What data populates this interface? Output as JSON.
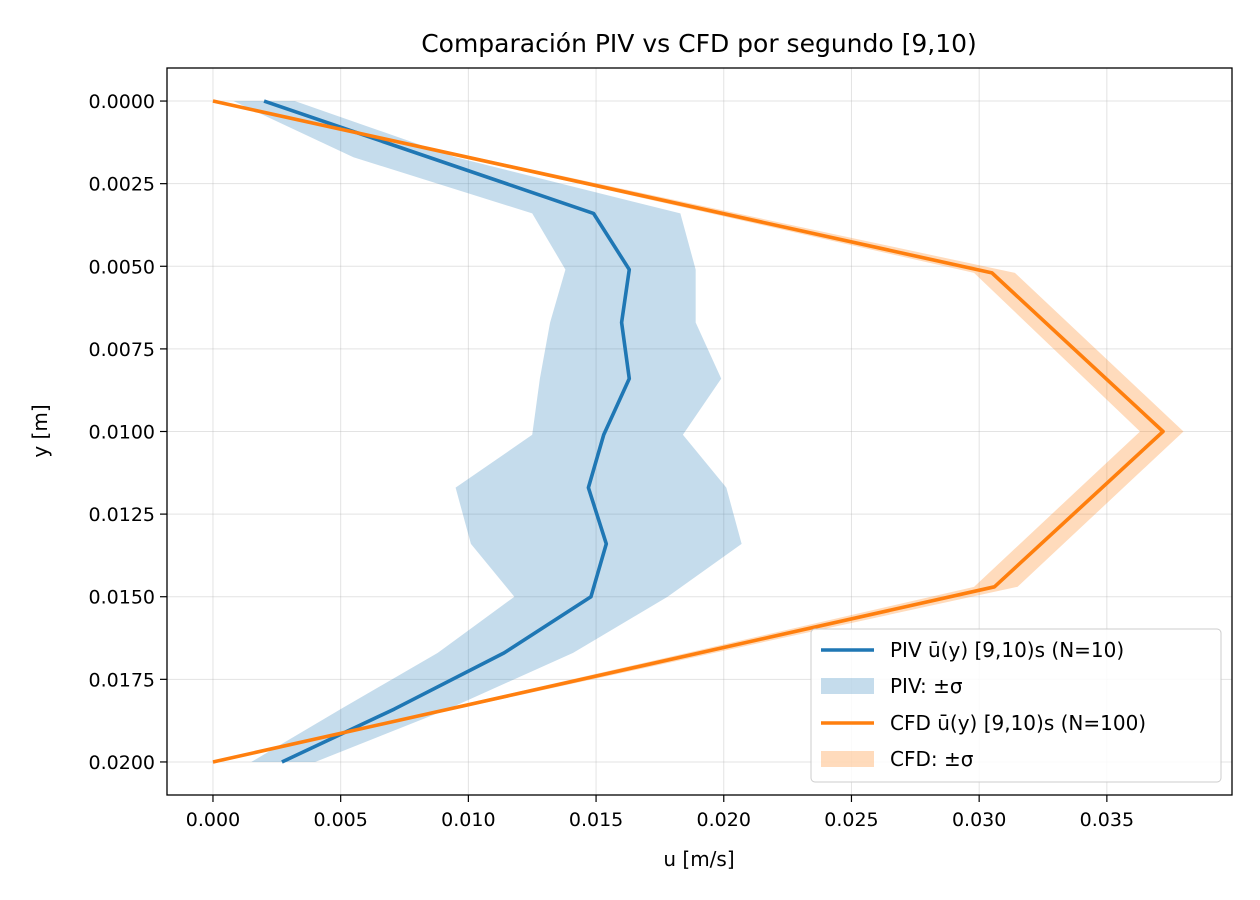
{
  "chart_data": {
    "type": "line",
    "title": "Comparación PIV vs CFD por segundo [9,10)",
    "xlabel": "u [m/s]",
    "ylabel": "y [m]",
    "xlim": [
      -0.0018,
      0.0399
    ],
    "ylim": [
      0.021,
      -0.001
    ],
    "y_inverted": true,
    "xticks": [
      0.0,
      0.005,
      0.01,
      0.015,
      0.02,
      0.025,
      0.03,
      0.035
    ],
    "xtick_labels": [
      "0.000",
      "0.005",
      "0.010",
      "0.015",
      "0.020",
      "0.025",
      "0.030",
      "0.035"
    ],
    "yticks": [
      0.0,
      0.0025,
      0.005,
      0.0075,
      0.01,
      0.0125,
      0.015,
      0.0175,
      0.02
    ],
    "ytick_labels": [
      "0.0000",
      "0.0025",
      "0.0050",
      "0.0075",
      "0.0100",
      "0.0125",
      "0.0150",
      "0.0175",
      "0.0200"
    ],
    "grid": true,
    "legend_position": "lower-right",
    "series": [
      {
        "name": "PIV ū(y) [9,10)s (N=10)",
        "kind": "line",
        "color": "#1f77b4",
        "points": [
          [
            0.002,
            0.0
          ],
          [
            0.0149,
            0.0034
          ],
          [
            0.0163,
            0.0051
          ],
          [
            0.016,
            0.0067
          ],
          [
            0.0163,
            0.0084
          ],
          [
            0.0153,
            0.0101
          ],
          [
            0.0147,
            0.0117
          ],
          [
            0.0154,
            0.0134
          ],
          [
            0.0148,
            0.015
          ],
          [
            0.0114,
            0.0167
          ],
          [
            0.0071,
            0.0184
          ],
          [
            0.0027,
            0.02
          ]
        ]
      },
      {
        "name": "PIV: ±σ",
        "kind": "band",
        "color": "#1f77b4",
        "opacity": 0.26,
        "y": [
          0.0,
          0.0017,
          0.0034,
          0.0051,
          0.0067,
          0.0084,
          0.0101,
          0.0117,
          0.0134,
          0.015,
          0.0167,
          0.0184,
          0.02
        ],
        "lower": [
          0.0008,
          0.0055,
          0.0125,
          0.0138,
          0.0132,
          0.0128,
          0.0125,
          0.0095,
          0.0101,
          0.0118,
          0.0088,
          0.005,
          0.0015
        ],
        "upper": [
          0.0032,
          0.0095,
          0.0183,
          0.0189,
          0.0189,
          0.0199,
          0.0184,
          0.0201,
          0.0207,
          0.0178,
          0.0141,
          0.0092,
          0.004
        ]
      },
      {
        "name": "CFD ū(y) [9,10)s (N=100)",
        "kind": "line",
        "color": "#ff7f0e",
        "points": [
          [
            0.0,
            0.0
          ],
          [
            0.0305,
            0.0052
          ],
          [
            0.0372,
            0.01
          ],
          [
            0.0306,
            0.0147
          ],
          [
            0.0,
            0.02
          ]
        ]
      },
      {
        "name": "CFD: ±σ",
        "kind": "band",
        "color": "#ff7f0e",
        "opacity": 0.28,
        "y": [
          0.0,
          0.0052,
          0.01,
          0.0147,
          0.02
        ],
        "lower": [
          0.0,
          0.0298,
          0.0363,
          0.0298,
          0.0
        ],
        "upper": [
          0.0,
          0.0314,
          0.038,
          0.0315,
          0.0
        ]
      }
    ]
  }
}
